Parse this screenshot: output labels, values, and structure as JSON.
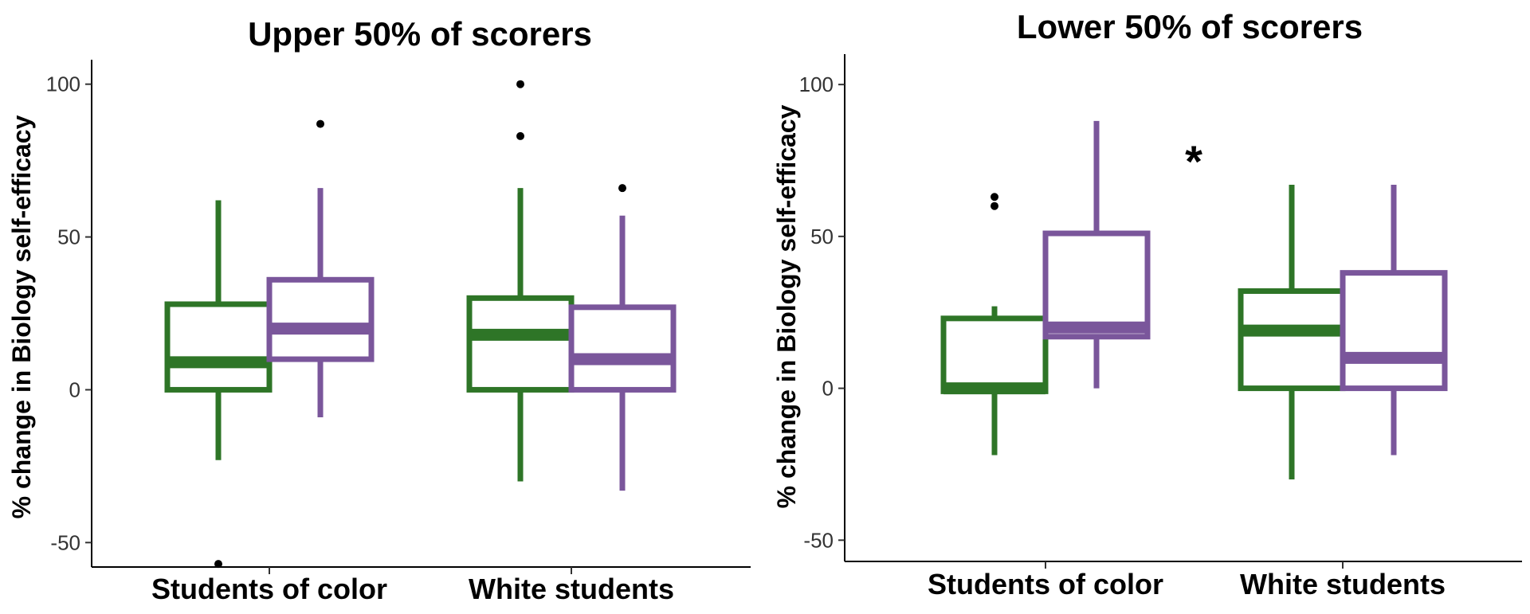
{
  "colors": {
    "group1": "#2e7527",
    "group2": "#7a569b",
    "axis": "#000000",
    "outlier": "#000000"
  },
  "chart_data": [
    {
      "type": "box",
      "title": "Upper 50% of scorers",
      "ylabel": "% change in Biology self-efficacy",
      "xlabel": "",
      "ylim": [
        -58,
        108
      ],
      "yticks": [
        -50,
        0,
        50,
        100
      ],
      "ytick_labels": [
        "-50",
        "0",
        "50",
        "100"
      ],
      "categories": [
        "Students of color",
        "White students"
      ],
      "annotations": [],
      "series": [
        {
          "color": "group1",
          "boxes": [
            {
              "category": "Students of color",
              "whisker_low": -23,
              "q1": 0,
              "median": 9,
              "q3": 28,
              "whisker_high": 62,
              "outliers": [
                -57
              ]
            },
            {
              "category": "White students",
              "whisker_low": -30,
              "q1": 0,
              "median": 18,
              "q3": 30,
              "whisker_high": 66,
              "outliers": [
                83,
                100
              ]
            }
          ]
        },
        {
          "color": "group2",
          "boxes": [
            {
              "category": "Students of color",
              "whisker_low": -9,
              "q1": 10,
              "median": 20,
              "q3": 36,
              "whisker_high": 66,
              "outliers": [
                87
              ]
            },
            {
              "category": "White students",
              "whisker_low": -33,
              "q1": 0,
              "median": 10,
              "q3": 27,
              "whisker_high": 57,
              "outliers": [
                66
              ]
            }
          ]
        }
      ]
    },
    {
      "type": "box",
      "title": "Lower 50% of scorers",
      "ylabel": "% change in Biology self-efficacy",
      "xlabel": "",
      "ylim": [
        -57,
        110
      ],
      "yticks": [
        -50,
        0,
        50,
        100
      ],
      "ytick_labels": [
        "-50",
        "0",
        "50",
        "100"
      ],
      "categories": [
        "Students of color",
        "White students"
      ],
      "annotations": [
        "*"
      ],
      "series": [
        {
          "color": "group1",
          "boxes": [
            {
              "category": "Students of color",
              "whisker_low": -22,
              "q1": -1,
              "median": 0,
              "q3": 23,
              "whisker_high": 27,
              "outliers": [
                60,
                63
              ]
            },
            {
              "category": "White students",
              "whisker_low": -30,
              "q1": 0,
              "median": 19,
              "q3": 32,
              "whisker_high": 67,
              "outliers": []
            }
          ]
        },
        {
          "color": "group2",
          "boxes": [
            {
              "category": "Students of color",
              "whisker_low": 0,
              "q1": 17,
              "median": 20,
              "q3": 51,
              "whisker_high": 88,
              "outliers": []
            },
            {
              "category": "White students",
              "whisker_low": -22,
              "q1": 0,
              "median": 10,
              "q3": 38,
              "whisker_high": 67,
              "outliers": []
            }
          ]
        }
      ]
    }
  ]
}
